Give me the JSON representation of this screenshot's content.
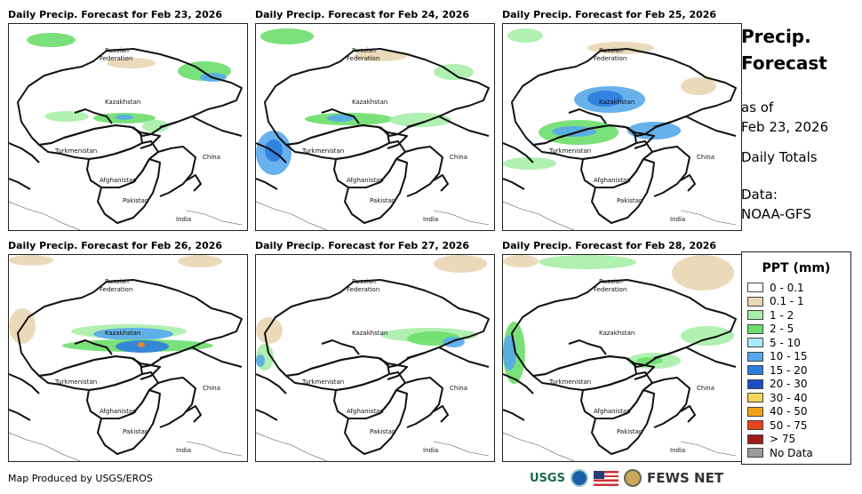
{
  "panels": [
    {
      "title": "Daily Precip. Forecast for Feb 23, 2026",
      "rain": [
        {
          "x": 20,
          "y": 10,
          "w": 55,
          "h": 16,
          "c": "#6cde6c"
        },
        {
          "x": 110,
          "y": 38,
          "w": 55,
          "h": 12,
          "c": "#e9d6b3"
        },
        {
          "x": 190,
          "y": 42,
          "w": 60,
          "h": 22,
          "c": "#6cde6c"
        },
        {
          "x": 215,
          "y": 55,
          "w": 30,
          "h": 10,
          "c": "#56a8ea"
        },
        {
          "x": 40,
          "y": 98,
          "w": 50,
          "h": 12,
          "c": "#a7eea7"
        },
        {
          "x": 95,
          "y": 100,
          "w": 70,
          "h": 12,
          "c": "#6cde6c"
        },
        {
          "x": 120,
          "y": 102,
          "w": 20,
          "h": 6,
          "c": "#56a8ea"
        },
        {
          "x": 150,
          "y": 108,
          "w": 30,
          "h": 14,
          "c": "#a7eea7"
        }
      ]
    },
    {
      "title": "Daily Precip. Forecast for Feb 24, 2026",
      "rain": [
        {
          "x": 5,
          "y": 5,
          "w": 60,
          "h": 18,
          "c": "#6cde6c"
        },
        {
          "x": 110,
          "y": 30,
          "w": 60,
          "h": 12,
          "c": "#e9d6b3"
        },
        {
          "x": 200,
          "y": 45,
          "w": 45,
          "h": 18,
          "c": "#a7eea7"
        },
        {
          "x": 0,
          "y": 120,
          "w": 40,
          "h": 50,
          "c": "#56a8ea"
        },
        {
          "x": 10,
          "y": 130,
          "w": 20,
          "h": 25,
          "c": "#2b7de0"
        },
        {
          "x": 55,
          "y": 100,
          "w": 100,
          "h": 14,
          "c": "#6cde6c"
        },
        {
          "x": 80,
          "y": 102,
          "w": 30,
          "h": 8,
          "c": "#56a8ea"
        },
        {
          "x": 150,
          "y": 100,
          "w": 70,
          "h": 16,
          "c": "#a7eea7"
        }
      ]
    },
    {
      "title": "Daily Precip. Forecast for Feb 25, 2026",
      "rain": [
        {
          "x": 5,
          "y": 5,
          "w": 40,
          "h": 16,
          "c": "#a7eea7"
        },
        {
          "x": 95,
          "y": 20,
          "w": 75,
          "h": 14,
          "c": "#e9d6b3"
        },
        {
          "x": 80,
          "y": 70,
          "w": 80,
          "h": 30,
          "c": "#56a8ea"
        },
        {
          "x": 95,
          "y": 75,
          "w": 40,
          "h": 18,
          "c": "#2b7de0"
        },
        {
          "x": 40,
          "y": 108,
          "w": 90,
          "h": 28,
          "c": "#6cde6c"
        },
        {
          "x": 55,
          "y": 115,
          "w": 50,
          "h": 12,
          "c": "#56a8ea"
        },
        {
          "x": 140,
          "y": 110,
          "w": 60,
          "h": 20,
          "c": "#56a8ea"
        },
        {
          "x": 0,
          "y": 150,
          "w": 60,
          "h": 14,
          "c": "#a7eea7"
        },
        {
          "x": 200,
          "y": 60,
          "w": 40,
          "h": 20,
          "c": "#e9d6b3"
        }
      ]
    },
    {
      "title": "Daily Precip. Forecast for Feb 26, 2026",
      "rain": [
        {
          "x": 0,
          "y": 0,
          "w": 50,
          "h": 12,
          "c": "#e9d6b3"
        },
        {
          "x": 190,
          "y": 0,
          "w": 50,
          "h": 14,
          "c": "#e9d6b3"
        },
        {
          "x": 70,
          "y": 78,
          "w": 130,
          "h": 16,
          "c": "#a7eea7"
        },
        {
          "x": 95,
          "y": 82,
          "w": 90,
          "h": 14,
          "c": "#56a8ea"
        },
        {
          "x": 60,
          "y": 95,
          "w": 170,
          "h": 14,
          "c": "#6cde6c"
        },
        {
          "x": 120,
          "y": 96,
          "w": 60,
          "h": 14,
          "c": "#2b7de0"
        },
        {
          "x": 145,
          "y": 98,
          "w": 8,
          "h": 6,
          "c": "#f28a1a"
        },
        {
          "x": 0,
          "y": 60,
          "w": 30,
          "h": 40,
          "c": "#e9d6b3"
        }
      ]
    },
    {
      "title": "Daily Precip. Forecast for Feb 27, 2026",
      "rain": [
        {
          "x": 200,
          "y": 0,
          "w": 60,
          "h": 20,
          "c": "#e9d6b3"
        },
        {
          "x": 0,
          "y": 70,
          "w": 30,
          "h": 30,
          "c": "#e9d6b3"
        },
        {
          "x": 140,
          "y": 82,
          "w": 110,
          "h": 16,
          "c": "#a7eea7"
        },
        {
          "x": 170,
          "y": 86,
          "w": 60,
          "h": 16,
          "c": "#6cde6c"
        },
        {
          "x": 210,
          "y": 92,
          "w": 25,
          "h": 12,
          "c": "#56a8ea"
        },
        {
          "x": 0,
          "y": 100,
          "w": 20,
          "h": 30,
          "c": "#a7eea7"
        },
        {
          "x": 0,
          "y": 112,
          "w": 10,
          "h": 14,
          "c": "#56a8ea"
        }
      ]
    },
    {
      "title": "Daily Precip. Forecast for Feb 28, 2026",
      "rain": [
        {
          "x": 40,
          "y": 0,
          "w": 110,
          "h": 16,
          "c": "#a7eea7"
        },
        {
          "x": 0,
          "y": 0,
          "w": 40,
          "h": 14,
          "c": "#e9d6b3"
        },
        {
          "x": 190,
          "y": 0,
          "w": 70,
          "h": 40,
          "c": "#e9d6b3"
        },
        {
          "x": 0,
          "y": 75,
          "w": 25,
          "h": 70,
          "c": "#6cde6c"
        },
        {
          "x": 0,
          "y": 90,
          "w": 15,
          "h": 40,
          "c": "#56a8ea"
        },
        {
          "x": 200,
          "y": 80,
          "w": 60,
          "h": 22,
          "c": "#a7eea7"
        },
        {
          "x": 140,
          "y": 110,
          "w": 60,
          "h": 18,
          "c": "#a7eea7"
        },
        {
          "x": 150,
          "y": 115,
          "w": 30,
          "h": 8,
          "c": "#6cde6c"
        }
      ]
    }
  ],
  "map_labels": {
    "russia_line1": "Russian",
    "russia_line2": "Federation",
    "kazakhstan": "Kazakhstan",
    "turkmenistan": "Turkmenistan",
    "afghanistan": "Afghanistan",
    "pakistan": "Pakistan",
    "china": "China",
    "india": "India"
  },
  "sidebar": {
    "title_line1": "Precip.",
    "title_line2": "Forecast",
    "asof_line1": "as of",
    "asof_line2": "Feb 23, 2026",
    "totals": "Daily Totals",
    "data_line1": "Data:",
    "data_line2": "NOAA-GFS"
  },
  "legend": {
    "title": "PPT (mm)",
    "items": [
      {
        "label": "0 - 0.1",
        "color": "#ffffff"
      },
      {
        "label": "0.1 - 1",
        "color": "#e9d6b3"
      },
      {
        "label": "1 - 2",
        "color": "#a7eea7"
      },
      {
        "label": "2 - 5",
        "color": "#6cde6c"
      },
      {
        "label": "5 - 10",
        "color": "#a9ecf7"
      },
      {
        "label": "10 - 15",
        "color": "#56a8ea"
      },
      {
        "label": "15 - 20",
        "color": "#2b7de0"
      },
      {
        "label": "20 - 30",
        "color": "#1a4fc4"
      },
      {
        "label": "30 - 40",
        "color": "#f5d55a"
      },
      {
        "label": "40 - 50",
        "color": "#f2a21a"
      },
      {
        "label": "50 - 75",
        "color": "#e8421a"
      },
      {
        "label": "> 75",
        "color": "#a11a1a"
      },
      {
        "label": "No Data",
        "color": "#9a9a9a"
      }
    ]
  },
  "footer": {
    "credit": "Map Produced by USGS/EROS"
  },
  "logos": {
    "usgs": "USGS",
    "fews": "FEWS NET"
  }
}
